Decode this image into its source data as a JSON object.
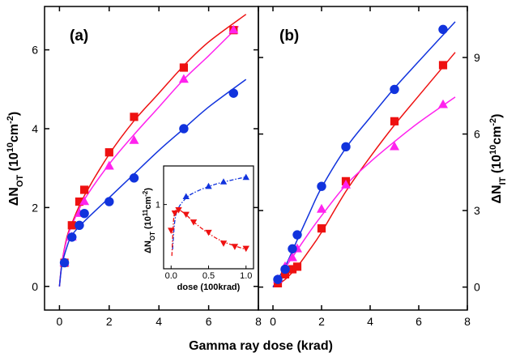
{
  "figure": {
    "xlabel": "Gamma ray dose (krad)",
    "colors": {
      "red": "#ee1111",
      "magenta": "#ff22ee",
      "blue": "#1133dd"
    }
  },
  "chart_data": [
    {
      "type": "scatter",
      "panel_label": "(a)",
      "ylabel_main": "ΔN",
      "ylabel_sub": "OT",
      "ylabel_unit": " (10",
      "ylabel_exp1": "10",
      "ylabel_unit2": "cm",
      "ylabel_exp2": "-2",
      "ylabel_close": ")",
      "xlim": [
        -0.6,
        8
      ],
      "ylim": [
        -0.6,
        7.1
      ],
      "xticks": [
        0,
        2,
        4,
        6,
        8
      ],
      "yticks": [
        0,
        2,
        4,
        6
      ],
      "y_axis_side": "left",
      "series": [
        {
          "color": "red",
          "marker": "square",
          "x": [
            0.2,
            0.5,
            0.8,
            1.0,
            2.0,
            3.0,
            5.0,
            7.0
          ],
          "y": [
            0.6,
            1.55,
            2.15,
            2.45,
            3.4,
            4.3,
            5.55,
            6.5
          ]
        },
        {
          "color": "magenta",
          "marker": "triangle-up",
          "x": [
            0.2,
            0.5,
            0.8,
            1.0,
            2.0,
            3.0,
            5.0,
            7.0
          ],
          "y": [
            0.6,
            1.25,
            1.85,
            2.15,
            3.05,
            3.7,
            5.25,
            6.5
          ]
        },
        {
          "color": "blue",
          "marker": "circle",
          "x": [
            0.2,
            0.5,
            0.8,
            1.0,
            2.0,
            3.0,
            5.0,
            7.0
          ],
          "y": [
            0.6,
            1.25,
            1.55,
            1.85,
            2.15,
            2.75,
            4.0,
            4.9
          ]
        }
      ],
      "fits": [
        {
          "color": "red",
          "x": [
            0,
            0.1,
            0.3,
            0.5,
            1.0,
            2.0,
            3.0,
            4.0,
            5.0,
            6.0,
            7.5
          ],
          "y": [
            0,
            0.6,
            1.25,
            1.6,
            2.3,
            3.35,
            4.2,
            4.9,
            5.6,
            6.2,
            6.9
          ]
        },
        {
          "color": "magenta",
          "x": [
            0,
            0.1,
            0.3,
            0.5,
            1.0,
            2.0,
            3.0,
            4.0,
            5.0,
            6.0,
            7.2
          ],
          "y": [
            0,
            0.6,
            1.2,
            1.55,
            2.2,
            3.1,
            3.85,
            4.55,
            5.25,
            5.85,
            6.6
          ]
        },
        {
          "color": "blue",
          "x": [
            0,
            0.1,
            0.3,
            0.5,
            1.0,
            2.0,
            3.0,
            4.0,
            5.0,
            6.0,
            7.5
          ],
          "y": [
            0,
            0.55,
            1.0,
            1.3,
            1.65,
            2.25,
            2.85,
            3.45,
            4.0,
            4.55,
            5.25
          ]
        }
      ],
      "inset": {
        "xlabel": "dose (100krad)",
        "ylabel_main": "ΔN",
        "ylabel_sub": "OT",
        "ylabel_unit": " (10",
        "ylabel_exp1": "11",
        "ylabel_unit2": "cm",
        "ylabel_exp2": "-2",
        "ylabel_close": ")",
        "xlim": [
          -0.1,
          1.1
        ],
        "ylim": [
          0,
          1.6
        ],
        "xticks": [
          "0.0",
          "0.5",
          "1.0"
        ],
        "xtick_values": [
          0,
          0.5,
          1.0
        ],
        "yticks": [
          "1"
        ],
        "ytick_values": [
          1
        ],
        "series": [
          {
            "color": "blue",
            "marker": "triangle-up",
            "x": [
              0.2,
              0.5,
              0.7,
              1.0
            ],
            "y": [
              1.12,
              1.28,
              1.35,
              1.42
            ]
          },
          {
            "color": "red",
            "marker": "triangle-down",
            "x": [
              0.0,
              0.05,
              0.1,
              0.2,
              0.3,
              0.5,
              0.7,
              0.85,
              1.0
            ],
            "y": [
              0.6,
              0.87,
              0.92,
              0.85,
              0.73,
              0.57,
              0.4,
              0.35,
              0.32
            ]
          }
        ],
        "fits": [
          {
            "color": "blue",
            "style": "dash-dot",
            "x": [
              0.02,
              0.05,
              0.1,
              0.2,
              0.3,
              0.5,
              0.7,
              1.0
            ],
            "y": [
              0.3,
              0.75,
              0.95,
              1.1,
              1.18,
              1.28,
              1.35,
              1.43
            ]
          },
          {
            "color": "red",
            "style": "dash-dot",
            "x": [
              0.01,
              0.03,
              0.05,
              0.1,
              0.2,
              0.3,
              0.5,
              0.7,
              1.0
            ],
            "y": [
              0.2,
              0.7,
              0.88,
              0.92,
              0.84,
              0.73,
              0.55,
              0.42,
              0.3
            ]
          }
        ]
      }
    },
    {
      "type": "scatter",
      "panel_label": "(b)",
      "ylabel_main": "ΔN",
      "ylabel_sub": "IT",
      "ylabel_unit": " (10",
      "ylabel_exp1": "10",
      "ylabel_unit2": "cm",
      "ylabel_exp2": "-2",
      "ylabel_close": ")",
      "xlim": [
        -0.6,
        8
      ],
      "ylim": [
        -0.9,
        11.0
      ],
      "xticks": [
        0,
        2,
        4,
        6,
        8
      ],
      "yticks": [
        0,
        3,
        6,
        9
      ],
      "y_axis_side": "right",
      "series": [
        {
          "color": "red",
          "marker": "square",
          "x": [
            0.2,
            0.5,
            0.8,
            1.0,
            2.0,
            3.0,
            5.0,
            7.0
          ],
          "y": [
            0.15,
            0.5,
            0.7,
            0.8,
            2.3,
            4.15,
            6.5,
            8.7
          ]
        },
        {
          "color": "magenta",
          "marker": "triangle-up",
          "x": [
            0.2,
            0.5,
            0.8,
            1.0,
            2.0,
            3.0,
            5.0,
            7.0
          ],
          "y": [
            0.3,
            0.8,
            1.15,
            1.5,
            3.05,
            4.0,
            5.5,
            7.15
          ]
        },
        {
          "color": "blue",
          "marker": "circle",
          "x": [
            0.2,
            0.5,
            0.8,
            1.0,
            2.0,
            3.0,
            5.0,
            7.0
          ],
          "y": [
            0.3,
            0.7,
            1.5,
            2.05,
            3.95,
            5.5,
            7.75,
            10.1
          ]
        }
      ],
      "fits": [
        {
          "color": "red",
          "x": [
            0,
            0.5,
            1.0,
            1.5,
            2.0,
            3.0,
            4.0,
            5.0,
            6.0,
            7.5
          ],
          "y": [
            0,
            0.3,
            0.8,
            1.45,
            2.15,
            3.75,
            5.1,
            6.35,
            7.5,
            9.2
          ]
        },
        {
          "color": "magenta",
          "x": [
            0,
            0.5,
            1.0,
            1.5,
            2.0,
            3.0,
            4.0,
            5.0,
            6.0,
            7.5
          ],
          "y": [
            0,
            0.75,
            1.45,
            2.15,
            2.8,
            4.0,
            4.9,
            5.7,
            6.45,
            7.45
          ]
        },
        {
          "color": "blue",
          "x": [
            0,
            0.5,
            1.0,
            1.5,
            2.0,
            3.0,
            4.0,
            5.0,
            6.0,
            7.5
          ],
          "y": [
            0,
            0.8,
            1.85,
            2.9,
            3.9,
            5.45,
            6.65,
            7.8,
            8.85,
            10.4
          ]
        }
      ]
    }
  ]
}
